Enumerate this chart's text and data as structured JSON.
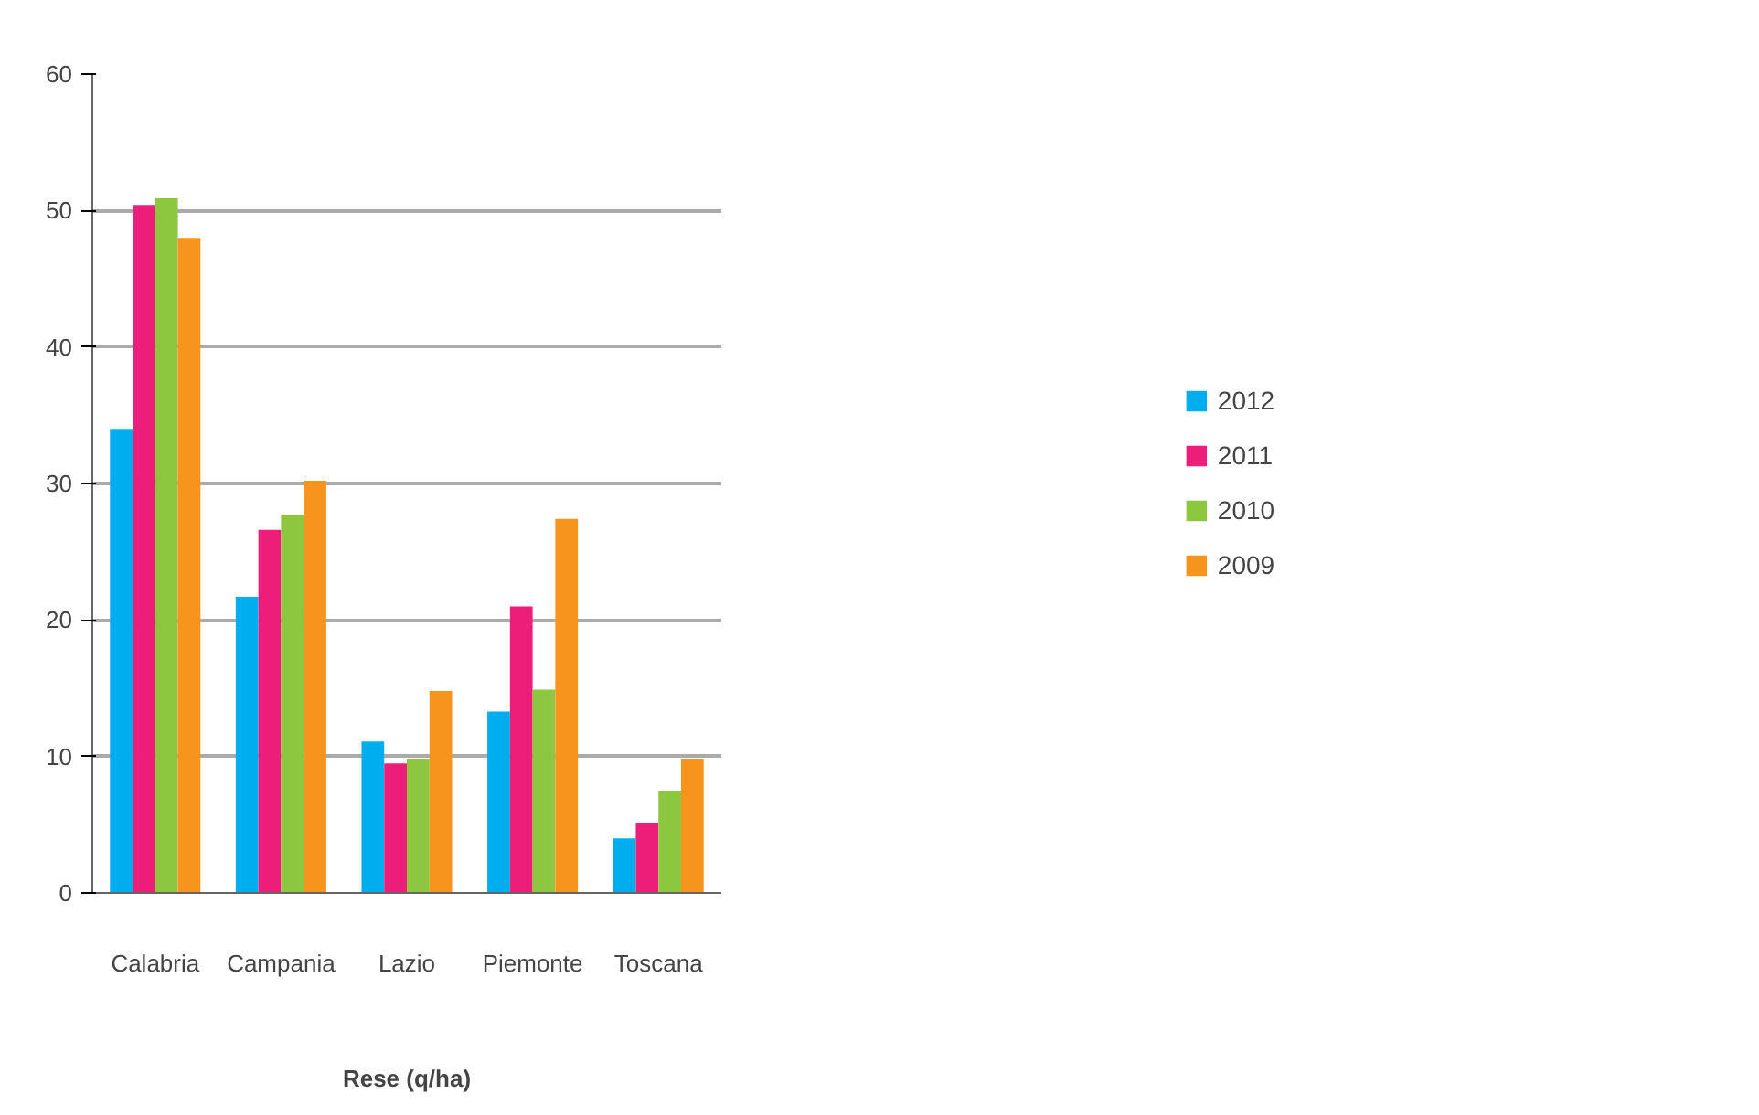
{
  "chart_data": {
    "type": "bar",
    "xlabel": "Rese (q/ha)",
    "categories": [
      "Calabria",
      "Campania",
      "Lazio",
      "Piemonte",
      "Toscana"
    ],
    "series": [
      {
        "name": "2012",
        "color": "#00aeef",
        "values": [
          34.0,
          21.7,
          11.1,
          13.3,
          4.0
        ]
      },
      {
        "name": "2011",
        "color": "#ec1e79",
        "values": [
          50.4,
          26.6,
          9.5,
          21.0,
          5.1
        ]
      },
      {
        "name": "2010",
        "color": "#8dc63f",
        "values": [
          50.9,
          27.7,
          9.8,
          14.9,
          7.5
        ]
      },
      {
        "name": "2009",
        "color": "#f7941d",
        "values": [
          48.0,
          30.2,
          14.8,
          27.4,
          9.8
        ]
      }
    ],
    "ylim": [
      0,
      60
    ],
    "yticks": [
      0,
      10,
      20,
      30,
      40,
      50,
      60
    ],
    "grid": "y",
    "legend": "right"
  }
}
